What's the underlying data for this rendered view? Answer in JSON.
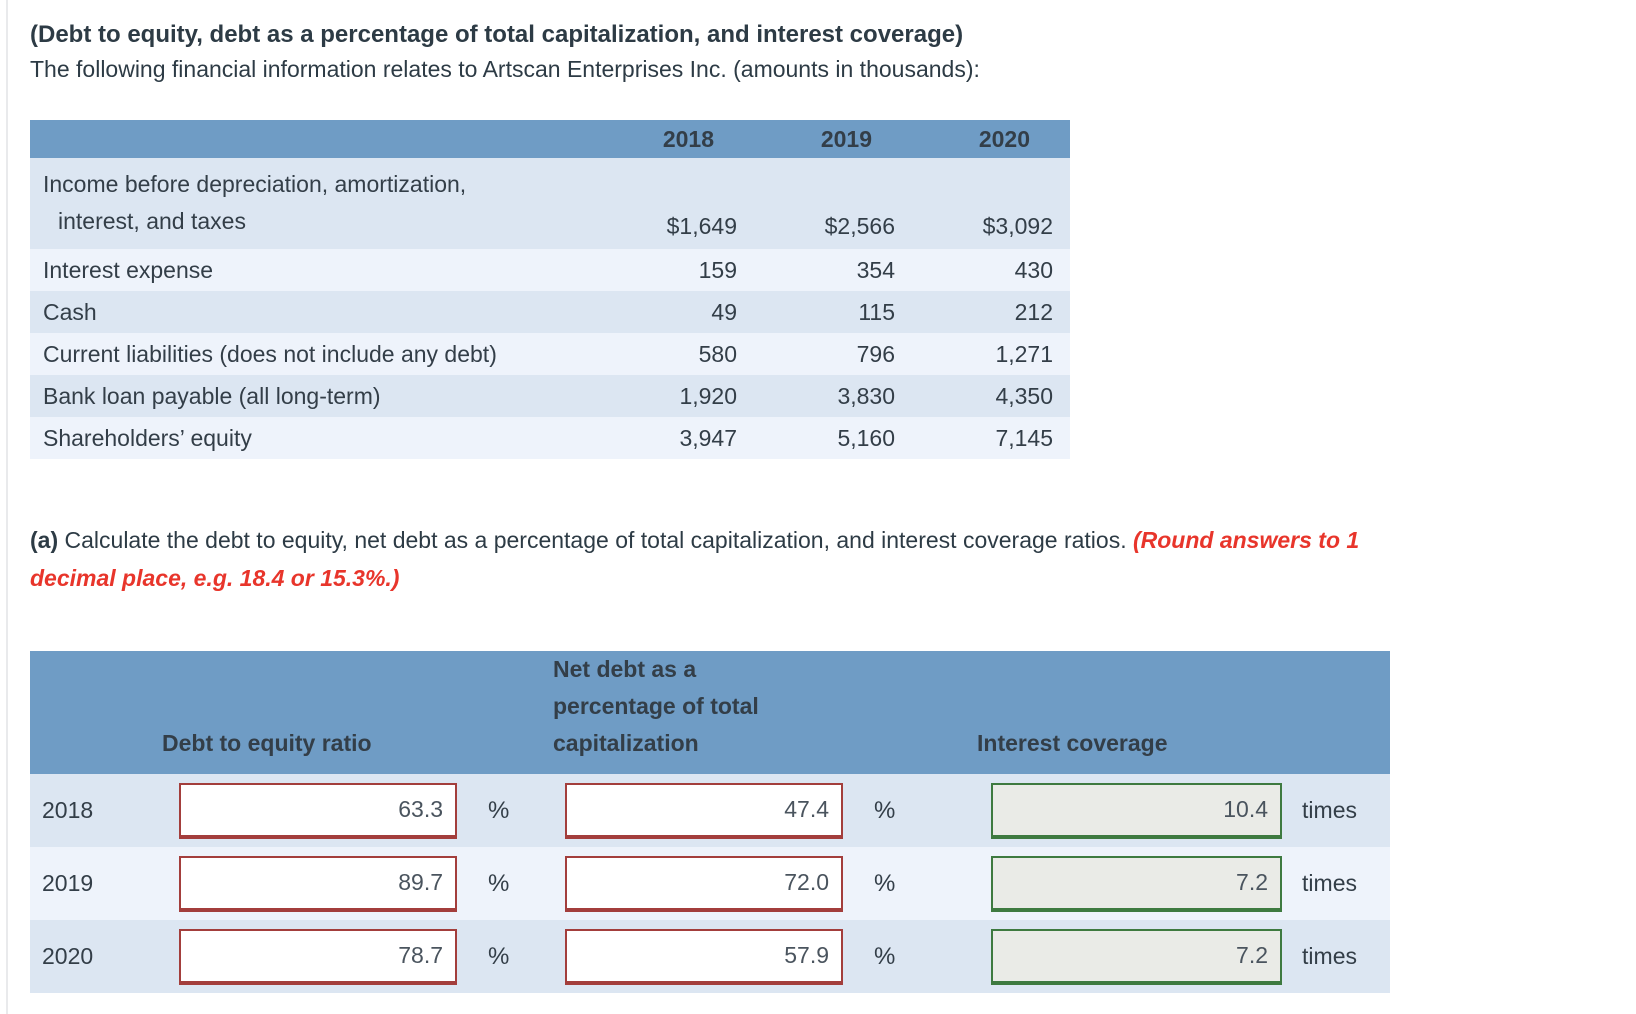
{
  "header": {
    "title": "(Debt to equity, debt as a percentage of total capitalization, and interest coverage)",
    "intro": "The following financial information relates to Artscan Enterprises Inc. (amounts in thousands):"
  },
  "financial_table": {
    "years": [
      "2018",
      "2019",
      "2020"
    ],
    "rows": [
      {
        "label": "Income before depreciation, amortization,",
        "label2": "interest, and taxes",
        "values": [
          "$1,649",
          "$2,566",
          "$3,092"
        ]
      },
      {
        "label": "Interest expense",
        "values": [
          "159",
          "354",
          "430"
        ]
      },
      {
        "label": "Cash",
        "values": [
          "49",
          "115",
          "212"
        ]
      },
      {
        "label": "Current liabilities (does not include any debt)",
        "values": [
          "580",
          "796",
          "1,271"
        ]
      },
      {
        "label": "Bank loan payable (all long-term)",
        "values": [
          "1,920",
          "3,830",
          "4,350"
        ]
      },
      {
        "label": "Shareholders’ equity",
        "values": [
          "3,947",
          "5,160",
          "7,145"
        ]
      }
    ]
  },
  "part_a": {
    "label": "(a)",
    "text": "Calculate the debt to equity, net debt as a percentage of total capitalization, and interest coverage ratios.",
    "note_line1": "(Round answers to 1",
    "note_line2": "decimal place, e.g. 18.4 or 15.3%.)"
  },
  "answer_table": {
    "col1_header": "Debt to equity ratio",
    "col2_header_line1": "Net debt as a",
    "col2_header_line2": "percentage of total",
    "col2_header_line3": "capitalization",
    "col3_header": "Interest coverage",
    "pct_label": "%",
    "times_label": "times",
    "rows": [
      {
        "year": "2018",
        "debt_to_equity": "63.3",
        "net_debt_pct": "47.4",
        "interest_coverage": "10.4"
      },
      {
        "year": "2019",
        "debt_to_equity": "89.7",
        "net_debt_pct": "72.0",
        "interest_coverage": "7.2"
      },
      {
        "year": "2020",
        "debt_to_equity": "78.7",
        "net_debt_pct": "57.9",
        "interest_coverage": "7.2"
      }
    ]
  },
  "colors": {
    "header_blue": "#6f9cc5",
    "row_dark": "#dce6f2",
    "row_light": "#eef3fb",
    "incorrect_border": "#a33e3c",
    "correct_border": "#3e7a40",
    "note_red": "#e8352b"
  }
}
